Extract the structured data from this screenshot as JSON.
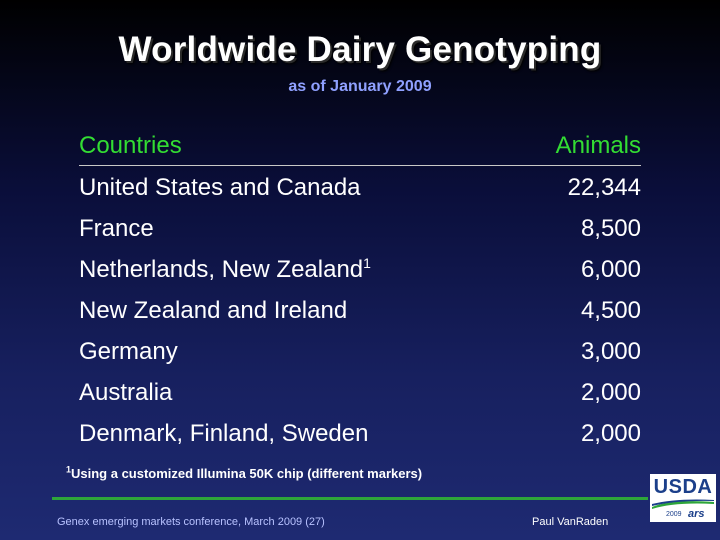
{
  "slide": {
    "title": "Worldwide Dairy Genotyping",
    "subtitle": "as of January 2009"
  },
  "table": {
    "headers": {
      "countries": "Countries",
      "animals": "Animals"
    },
    "rows": [
      {
        "country": "United States and Canada",
        "animals": "22,344",
        "marker": ""
      },
      {
        "country": "France",
        "animals": "8,500",
        "marker": ""
      },
      {
        "country": "Netherlands, New Zealand",
        "animals": "6,000",
        "marker": "1"
      },
      {
        "country": "New Zealand and Ireland",
        "animals": "4,500",
        "marker": ""
      },
      {
        "country": "Germany",
        "animals": "3,000",
        "marker": ""
      },
      {
        "country": "Australia",
        "animals": "2,000",
        "marker": ""
      },
      {
        "country": "Denmark, Finland, Sweden",
        "animals": "2,000",
        "marker": ""
      }
    ]
  },
  "footnote": {
    "marker": "1",
    "text": "Using a customized Illumina 50K chip (different markers)"
  },
  "footer": {
    "left": "Genex emerging markets conference, March 2009 (27)",
    "right": "Paul VanRaden"
  },
  "logo": {
    "text": "USDA",
    "year": "2009",
    "agency": "ars"
  },
  "colors": {
    "title": "#ffffff",
    "subtitle": "#8fa0ff",
    "header": "#33dd33",
    "rule": "#2ea53a",
    "logo_blue": "#1b3f8a"
  }
}
